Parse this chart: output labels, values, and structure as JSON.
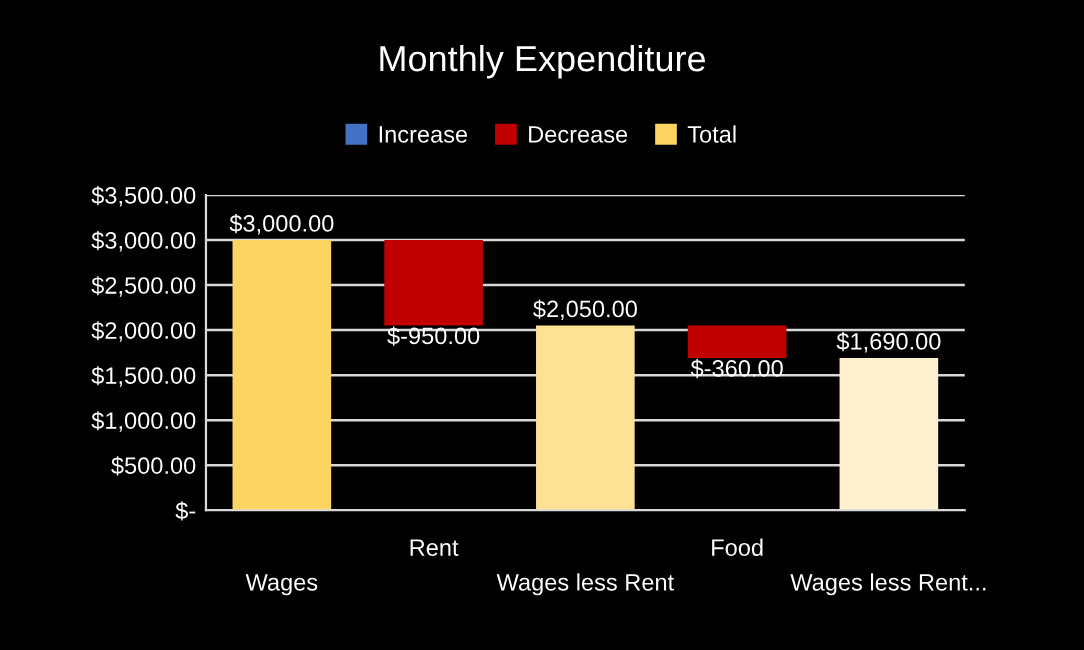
{
  "chart_data": {
    "type": "bar",
    "title": "Monthly Expenditure",
    "categories": [
      "Wages",
      "Rent",
      "Wages less Rent",
      "Food",
      "Wages less Rent..."
    ],
    "series": [
      {
        "name": "Increase",
        "color": "#4472c4",
        "values": [
          null,
          null,
          null,
          null,
          null
        ]
      },
      {
        "name": "Decrease",
        "color": "#c00000",
        "base": [
          null,
          3000,
          null,
          2050,
          null
        ],
        "values": [
          null,
          -950,
          null,
          -360,
          null
        ],
        "value_labels": [
          null,
          "$-950.00",
          null,
          "$-360.00",
          null
        ]
      },
      {
        "name": "Total",
        "color": "#fcd462",
        "colors": [
          "#fcd462",
          "#c00000",
          "#fde295",
          "#c00000",
          "#fff0cf"
        ],
        "base": [
          0,
          null,
          0,
          null,
          0
        ],
        "values": [
          3000,
          null,
          2050,
          null,
          1690
        ],
        "value_labels": [
          "$3,000.00",
          null,
          "$2,050.00",
          null,
          "$1,690.00"
        ]
      }
    ],
    "ylim": [
      0,
      3500
    ],
    "yticks": [
      {
        "value": 0,
        "label": "$-"
      },
      {
        "value": 500,
        "label": "$500.00"
      },
      {
        "value": 1000,
        "label": "$1,000.00"
      },
      {
        "value": 1500,
        "label": "$1,500.00"
      },
      {
        "value": 2000,
        "label": "$2,000.00"
      },
      {
        "value": 2500,
        "label": "$2,500.00"
      },
      {
        "value": 3000,
        "label": "$3,000.00"
      },
      {
        "value": 3500,
        "label": "$3,500.00"
      }
    ],
    "grid": "y",
    "legend": "top"
  }
}
